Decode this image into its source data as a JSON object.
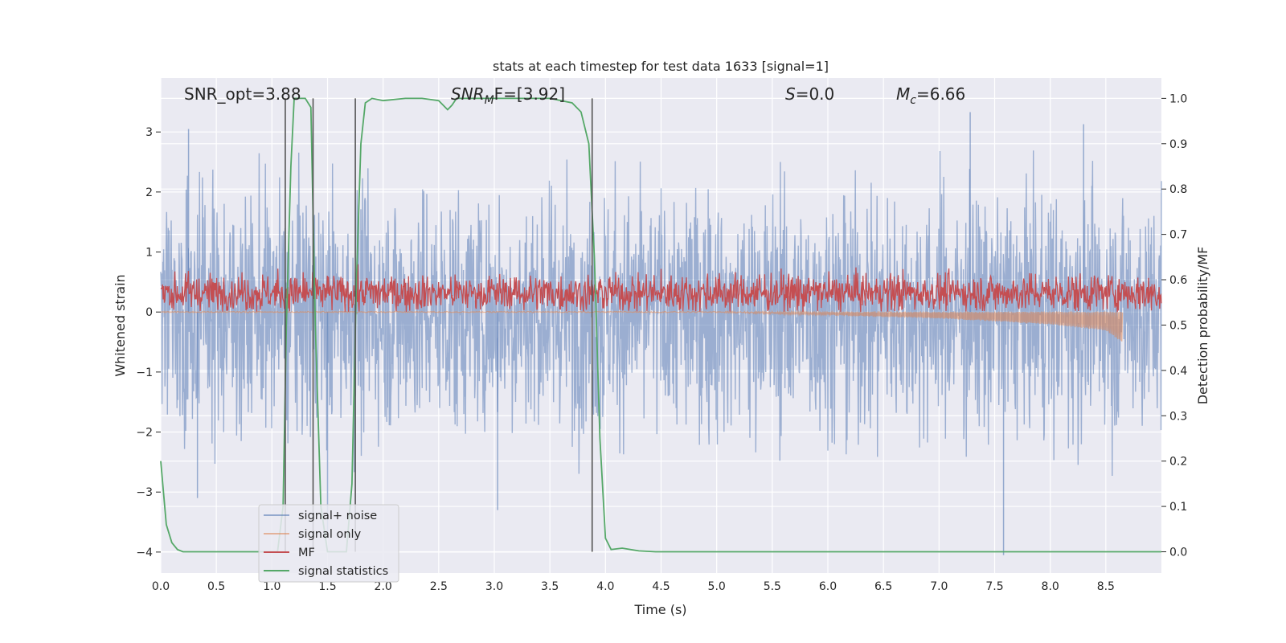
{
  "chart_data": {
    "type": "line",
    "title": "stats at each timestep for test data 1633 [signal=1]",
    "xlabel": "Time (s)",
    "ylabel": "Whitened strain",
    "y2label": "Detection probability/MF",
    "xlim": [
      0.0,
      9.0
    ],
    "ylim": [
      -4.35,
      3.9
    ],
    "y2lim": [
      -0.047,
      1.045
    ],
    "x_ticks": [
      "0.0",
      "0.5",
      "1.0",
      "1.5",
      "2.0",
      "2.5",
      "3.0",
      "3.5",
      "4.0",
      "4.5",
      "5.0",
      "5.5",
      "6.0",
      "6.5",
      "7.0",
      "7.5",
      "8.0",
      "8.5"
    ],
    "y_ticks": [
      "−4",
      "−3",
      "−2",
      "−1",
      "0",
      "1",
      "2",
      "3"
    ],
    "y2_ticks": [
      "0.0",
      "0.1",
      "0.2",
      "0.3",
      "0.4",
      "0.5",
      "0.6",
      "0.7",
      "0.8",
      "0.9",
      "1.0"
    ],
    "grid": true,
    "legend_position": "lower-left",
    "annotations": {
      "snr_opt": "SNR_opt=3.88",
      "snr_mf_base": "SNR",
      "snr_mf_sub": "M",
      "snr_mf_rest": "F=[3.92]",
      "s_label": "S",
      "s_value": "=0.0",
      "mc_base": "M",
      "mc_sub": "c",
      "mc_value": "=6.66"
    },
    "vertical_lines_x": [
      1.12,
      1.37,
      1.75,
      3.88
    ],
    "series": [
      {
        "name": "signal+ noise",
        "color": "#4c72b0",
        "axis": "left",
        "description_stats": {
          "noise_sigma": 1.0,
          "x_start": 0.0,
          "x_end": 9.0
        },
        "spikes": [
          [
            0.25,
            3.05
          ],
          [
            0.33,
            -3.1
          ],
          [
            1.5,
            -3.65
          ],
          [
            3.03,
            -3.3
          ],
          [
            7.58,
            -4.05
          ],
          [
            7.28,
            3.33
          ],
          [
            8.3,
            3.13
          ]
        ]
      },
      {
        "name": "signal only",
        "color": "#dd8452",
        "axis": "left",
        "envelope": [
          [
            0.0,
            0.0
          ],
          [
            5.0,
            0.0
          ],
          [
            6.0,
            -0.05
          ],
          [
            7.0,
            -0.1
          ],
          [
            8.0,
            -0.2
          ],
          [
            8.5,
            -0.3
          ],
          [
            8.65,
            -0.5
          ]
        ]
      },
      {
        "name": "MF",
        "color": "#c44e52",
        "axis": "left",
        "band": [
          0.0,
          0.9
        ]
      },
      {
        "name": "signal statistics",
        "color": "#55a868",
        "axis": "right",
        "x": [
          0.0,
          0.05,
          0.1,
          0.15,
          0.2,
          0.3,
          1.05,
          1.1,
          1.13,
          1.17,
          1.2,
          1.3,
          1.35,
          1.39,
          1.44,
          1.5,
          1.55,
          1.6,
          1.67,
          1.72,
          1.76,
          1.8,
          1.84,
          1.9,
          2.0,
          2.2,
          2.35,
          2.5,
          2.58,
          2.62,
          2.66,
          2.7,
          2.75,
          3.0,
          3.5,
          3.7,
          3.78,
          3.85,
          3.9,
          3.95,
          4.0,
          4.05,
          4.15,
          4.3,
          4.45,
          9.0
        ],
        "y": [
          0.2,
          0.06,
          0.02,
          0.005,
          0.0,
          0.0,
          0.0,
          0.1,
          0.5,
          0.85,
          1.0,
          1.0,
          0.98,
          0.5,
          0.1,
          0.0,
          0.0,
          0.0,
          0.0,
          0.15,
          0.6,
          0.9,
          0.99,
          1.0,
          0.995,
          1.0,
          1.0,
          0.995,
          0.975,
          0.985,
          1.0,
          1.0,
          1.0,
          1.0,
          1.0,
          0.99,
          0.97,
          0.9,
          0.65,
          0.25,
          0.03,
          0.005,
          0.008,
          0.002,
          0.0,
          0.0
        ]
      }
    ]
  }
}
